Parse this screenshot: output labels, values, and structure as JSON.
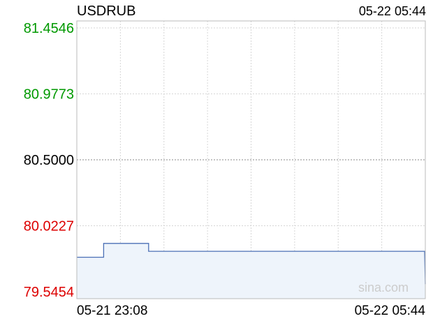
{
  "header": {
    "symbol": "USDRUB",
    "timestamp": "05-22 05:44"
  },
  "watermark": "sina.com",
  "colors": {
    "up": "#009900",
    "down": "#dd0000",
    "neutral": "#000000",
    "line": "#4a6fb5",
    "fill": "#eef4fb",
    "grid": "#d6d6d6",
    "frame": "#bbbbbb"
  },
  "chart_data": {
    "type": "area",
    "title": "USDRUB",
    "reference": 80.5,
    "ylim": [
      79.5454,
      81.4546
    ],
    "yticks": [
      {
        "value": 81.4546,
        "label": "81.4546",
        "tone": "up"
      },
      {
        "value": 80.9773,
        "label": "80.9773",
        "tone": "up"
      },
      {
        "value": 80.5,
        "label": "80.5000",
        "tone": "neutral"
      },
      {
        "value": 80.0227,
        "label": "80.0227",
        "tone": "down"
      },
      {
        "value": 79.5454,
        "label": "79.5454",
        "tone": "down"
      }
    ],
    "xticks": [
      {
        "at": 0,
        "label": "05-21 23:08"
      },
      {
        "at": 1,
        "label": "05-22 05:44"
      }
    ],
    "grid": true,
    "series": [
      {
        "step": true,
        "points": [
          [
            0.0,
            79.795
          ],
          [
            0.077,
            79.795
          ],
          [
            0.077,
            79.895
          ],
          [
            0.206,
            79.895
          ],
          [
            0.206,
            79.838
          ],
          [
            0.998,
            79.838
          ],
          [
            1.0,
            79.6
          ]
        ]
      }
    ]
  }
}
